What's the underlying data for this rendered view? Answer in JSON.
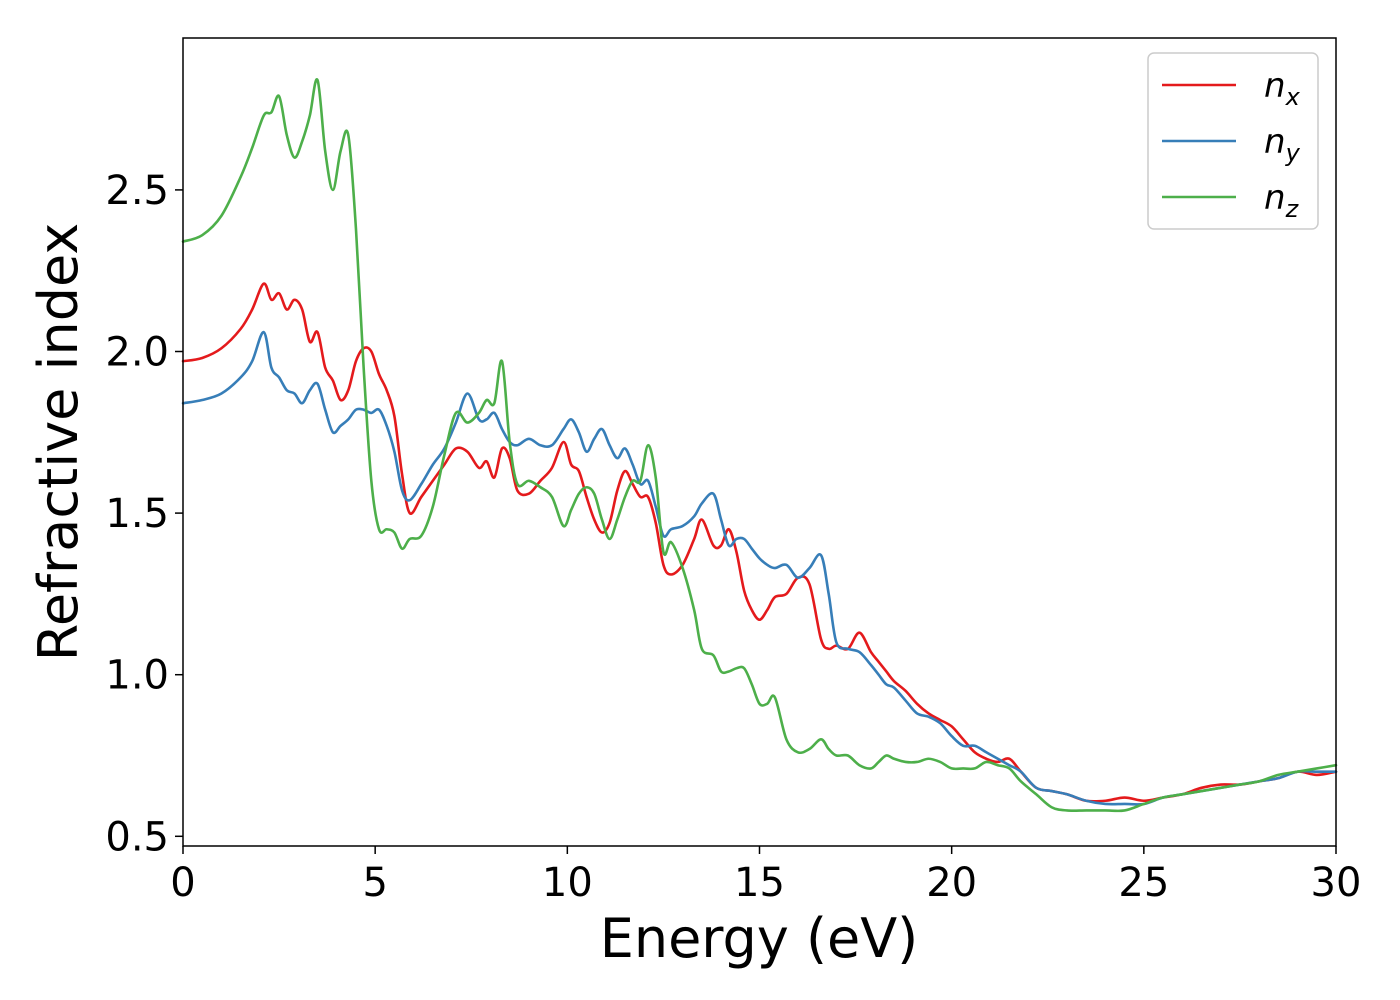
{
  "chart_data": {
    "type": "line",
    "xlabel": "Energy (eV)",
    "ylabel": "Refractive index",
    "xlim": [
      0,
      30
    ],
    "ylim": [
      0.47,
      2.97
    ],
    "xticks": [
      0,
      5,
      10,
      15,
      20,
      25,
      30
    ],
    "xtick_labels": [
      "0",
      "5",
      "10",
      "15",
      "20",
      "25",
      "30"
    ],
    "yticks": [
      0.5,
      1.0,
      1.5,
      2.0,
      2.5
    ],
    "ytick_labels": [
      "0.5",
      "1.0",
      "1.5",
      "2.0",
      "2.5"
    ],
    "grid": false,
    "legend_position": "top-right",
    "series": [
      {
        "name": "n",
        "subscript": "x",
        "color": "#e41a1c",
        "x": [
          0,
          0.5,
          1.0,
          1.5,
          1.8,
          2.1,
          2.3,
          2.5,
          2.7,
          2.9,
          3.1,
          3.3,
          3.5,
          3.7,
          3.9,
          4.1,
          4.3,
          4.5,
          4.7,
          4.9,
          5.1,
          5.3,
          5.5,
          5.7,
          5.9,
          6.2,
          6.5,
          6.8,
          7.1,
          7.4,
          7.7,
          7.9,
          8.1,
          8.3,
          8.5,
          8.7,
          9.0,
          9.3,
          9.6,
          9.9,
          10.1,
          10.3,
          10.5,
          10.7,
          10.9,
          11.1,
          11.3,
          11.5,
          11.7,
          11.9,
          12.1,
          12.3,
          12.5,
          12.7,
          13.0,
          13.3,
          13.5,
          13.8,
          14.0,
          14.2,
          14.4,
          14.6,
          14.8,
          15.0,
          15.2,
          15.4,
          15.7,
          16.0,
          16.3,
          16.6,
          16.8,
          17.0,
          17.3,
          17.6,
          17.9,
          18.1,
          18.3,
          18.5,
          18.8,
          19.1,
          19.4,
          19.7,
          20.0,
          20.3,
          20.6,
          20.9,
          21.2,
          21.5,
          21.8,
          22.2,
          22.6,
          23.0,
          23.5,
          24.0,
          24.5,
          25.0,
          25.5,
          26.0,
          26.5,
          27.0,
          27.5,
          28.0,
          28.5,
          29.0,
          29.5,
          30.0
        ],
        "y": [
          1.97,
          1.98,
          2.01,
          2.07,
          2.13,
          2.21,
          2.16,
          2.18,
          2.13,
          2.16,
          2.13,
          2.03,
          2.06,
          1.95,
          1.91,
          1.85,
          1.88,
          1.97,
          2.01,
          2.0,
          1.93,
          1.88,
          1.8,
          1.62,
          1.5,
          1.55,
          1.6,
          1.65,
          1.7,
          1.69,
          1.64,
          1.66,
          1.61,
          1.7,
          1.67,
          1.57,
          1.56,
          1.6,
          1.64,
          1.72,
          1.65,
          1.63,
          1.55,
          1.48,
          1.44,
          1.47,
          1.57,
          1.63,
          1.59,
          1.55,
          1.55,
          1.47,
          1.34,
          1.31,
          1.34,
          1.42,
          1.48,
          1.4,
          1.4,
          1.45,
          1.38,
          1.26,
          1.2,
          1.17,
          1.2,
          1.24,
          1.25,
          1.3,
          1.28,
          1.11,
          1.08,
          1.09,
          1.08,
          1.13,
          1.07,
          1.04,
          1.01,
          0.98,
          0.95,
          0.91,
          0.88,
          0.86,
          0.84,
          0.8,
          0.76,
          0.74,
          0.73,
          0.74,
          0.7,
          0.65,
          0.64,
          0.63,
          0.61,
          0.61,
          0.62,
          0.61,
          0.62,
          0.63,
          0.65,
          0.66,
          0.66,
          0.67,
          0.68,
          0.7,
          0.69,
          0.7
        ]
      },
      {
        "name": "n",
        "subscript": "y",
        "color": "#377eb8",
        "x": [
          0,
          0.5,
          1.0,
          1.5,
          1.8,
          2.1,
          2.3,
          2.5,
          2.7,
          2.9,
          3.1,
          3.3,
          3.5,
          3.7,
          3.9,
          4.1,
          4.3,
          4.5,
          4.7,
          4.9,
          5.1,
          5.3,
          5.5,
          5.7,
          5.9,
          6.2,
          6.5,
          6.8,
          7.1,
          7.4,
          7.7,
          7.9,
          8.1,
          8.3,
          8.5,
          8.7,
          9.0,
          9.3,
          9.6,
          9.9,
          10.1,
          10.3,
          10.5,
          10.7,
          10.9,
          11.1,
          11.3,
          11.5,
          11.7,
          11.9,
          12.1,
          12.3,
          12.5,
          12.7,
          13.0,
          13.3,
          13.5,
          13.8,
          14.0,
          14.2,
          14.4,
          14.6,
          14.8,
          15.0,
          15.2,
          15.4,
          15.7,
          16.0,
          16.3,
          16.6,
          16.8,
          17.0,
          17.3,
          17.6,
          17.9,
          18.1,
          18.3,
          18.5,
          18.8,
          19.1,
          19.4,
          19.7,
          20.0,
          20.3,
          20.6,
          20.9,
          21.2,
          21.5,
          21.8,
          22.2,
          22.6,
          23.0,
          23.5,
          24.0,
          24.5,
          25.0,
          25.5,
          26.0,
          26.5,
          27.0,
          27.5,
          28.0,
          28.5,
          29.0,
          29.5,
          30.0
        ],
        "y": [
          1.84,
          1.85,
          1.87,
          1.92,
          1.97,
          2.06,
          1.95,
          1.92,
          1.88,
          1.87,
          1.84,
          1.88,
          1.9,
          1.82,
          1.75,
          1.77,
          1.79,
          1.82,
          1.82,
          1.81,
          1.82,
          1.77,
          1.69,
          1.57,
          1.54,
          1.59,
          1.65,
          1.7,
          1.78,
          1.87,
          1.79,
          1.79,
          1.81,
          1.76,
          1.72,
          1.71,
          1.73,
          1.71,
          1.71,
          1.76,
          1.79,
          1.75,
          1.69,
          1.73,
          1.76,
          1.71,
          1.67,
          1.7,
          1.65,
          1.59,
          1.6,
          1.52,
          1.43,
          1.45,
          1.46,
          1.49,
          1.53,
          1.56,
          1.48,
          1.4,
          1.42,
          1.42,
          1.39,
          1.36,
          1.34,
          1.33,
          1.34,
          1.3,
          1.33,
          1.37,
          1.25,
          1.1,
          1.08,
          1.07,
          1.03,
          1.0,
          0.97,
          0.96,
          0.92,
          0.88,
          0.87,
          0.85,
          0.81,
          0.78,
          0.78,
          0.76,
          0.74,
          0.72,
          0.7,
          0.65,
          0.64,
          0.63,
          0.61,
          0.6,
          0.6,
          0.6,
          0.62,
          0.63,
          0.64,
          0.65,
          0.66,
          0.67,
          0.68,
          0.7,
          0.7,
          0.7
        ]
      },
      {
        "name": "n",
        "subscript": "z",
        "color": "#4daf4a",
        "x": [
          0,
          0.5,
          1.0,
          1.5,
          1.8,
          2.1,
          2.3,
          2.5,
          2.7,
          2.9,
          3.1,
          3.3,
          3.5,
          3.7,
          3.9,
          4.1,
          4.3,
          4.5,
          4.7,
          4.9,
          5.1,
          5.3,
          5.5,
          5.7,
          5.9,
          6.2,
          6.5,
          6.8,
          7.1,
          7.4,
          7.7,
          7.9,
          8.1,
          8.3,
          8.5,
          8.7,
          9.0,
          9.3,
          9.6,
          9.9,
          10.1,
          10.3,
          10.5,
          10.7,
          10.9,
          11.1,
          11.3,
          11.5,
          11.7,
          11.9,
          12.1,
          12.3,
          12.5,
          12.7,
          13.0,
          13.3,
          13.5,
          13.8,
          14.0,
          14.2,
          14.4,
          14.6,
          14.8,
          15.0,
          15.2,
          15.4,
          15.7,
          16.0,
          16.3,
          16.6,
          16.8,
          17.0,
          17.3,
          17.6,
          17.9,
          18.1,
          18.3,
          18.5,
          18.8,
          19.1,
          19.4,
          19.7,
          20.0,
          20.3,
          20.6,
          20.9,
          21.2,
          21.5,
          21.8,
          22.2,
          22.6,
          23.0,
          23.5,
          24.0,
          24.5,
          25.0,
          25.5,
          26.0,
          26.5,
          27.0,
          27.5,
          28.0,
          28.5,
          29.0,
          29.5,
          30.0
        ],
        "y": [
          2.34,
          2.36,
          2.42,
          2.54,
          2.63,
          2.73,
          2.74,
          2.79,
          2.67,
          2.6,
          2.65,
          2.73,
          2.84,
          2.62,
          2.5,
          2.62,
          2.67,
          2.38,
          1.95,
          1.6,
          1.45,
          1.45,
          1.44,
          1.39,
          1.42,
          1.43,
          1.52,
          1.68,
          1.81,
          1.78,
          1.81,
          1.85,
          1.84,
          1.97,
          1.72,
          1.59,
          1.6,
          1.58,
          1.55,
          1.46,
          1.51,
          1.56,
          1.58,
          1.56,
          1.48,
          1.42,
          1.48,
          1.55,
          1.6,
          1.6,
          1.71,
          1.61,
          1.38,
          1.41,
          1.33,
          1.2,
          1.08,
          1.06,
          1.01,
          1.01,
          1.02,
          1.02,
          0.97,
          0.91,
          0.91,
          0.93,
          0.8,
          0.76,
          0.77,
          0.8,
          0.77,
          0.75,
          0.75,
          0.72,
          0.71,
          0.73,
          0.75,
          0.74,
          0.73,
          0.73,
          0.74,
          0.73,
          0.71,
          0.71,
          0.71,
          0.73,
          0.72,
          0.71,
          0.67,
          0.63,
          0.59,
          0.58,
          0.58,
          0.58,
          0.58,
          0.6,
          0.62,
          0.63,
          0.64,
          0.65,
          0.66,
          0.67,
          0.69,
          0.7,
          0.71,
          0.72
        ]
      }
    ]
  }
}
